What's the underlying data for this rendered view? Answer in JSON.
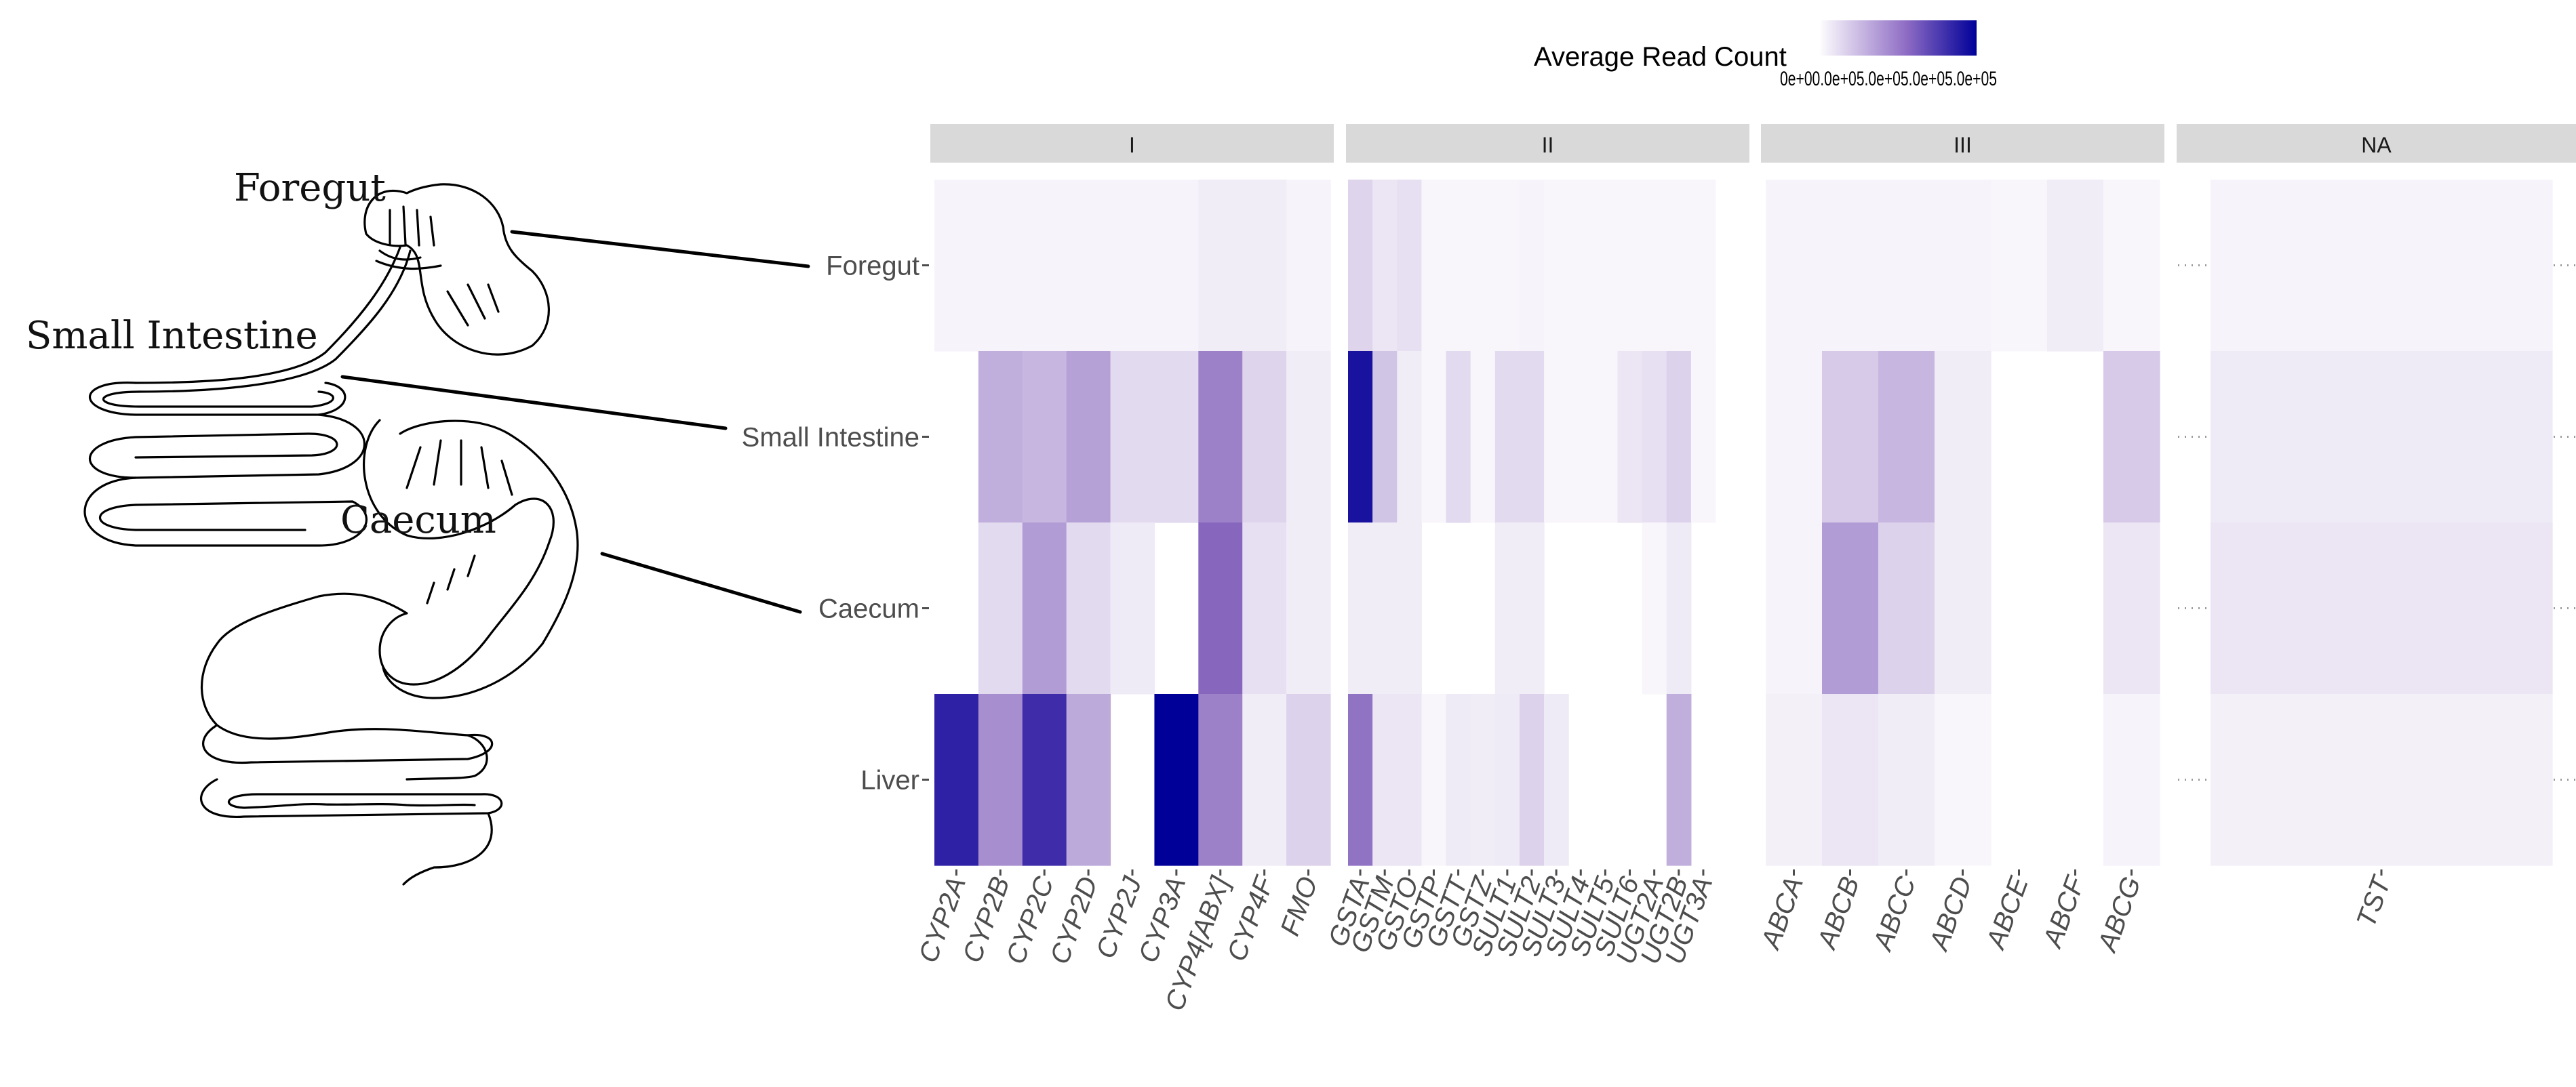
{
  "illustration": {
    "labels": [
      "Foregut",
      "Small Intestine",
      "Caecum"
    ]
  },
  "legend": {
    "title": "Average Read Count",
    "tick_text": "0e+00.0e+05.0e+05.0e+05.0e+05",
    "low_color": "#FCFBFD",
    "high_color": "#000099"
  },
  "chart_data": {
    "type": "heatmap",
    "title": "",
    "xlabel": "",
    "ylabel": "",
    "rows": [
      "Foregut",
      "Small Intestine",
      "Caecum",
      "Liver"
    ],
    "color_scale": {
      "low": "#FCFBFD",
      "mid": "#7C58B8",
      "high": "#000099",
      "value_unit": "fraction of maximum",
      "range": [
        0,
        1
      ]
    },
    "facets": [
      {
        "label": "I",
        "genes": [
          "CYP2A",
          "CYP2B",
          "CYP2C",
          "CYP2D",
          "CYP2J",
          "CYP3A",
          "CYP4[ABX]",
          "CYP4F",
          "FMO"
        ],
        "values": [
          [
            0.03,
            0.03,
            0.03,
            0.03,
            0.03,
            0.03,
            0.05,
            0.05,
            0.03
          ],
          [
            null,
            0.28,
            0.25,
            0.33,
            0.12,
            0.12,
            0.45,
            0.14,
            0.05
          ],
          [
            null,
            0.12,
            0.35,
            0.12,
            0.06,
            null,
            0.55,
            0.1,
            0.05
          ],
          [
            0.85,
            0.4,
            0.8,
            0.3,
            null,
            1.0,
            0.45,
            0.05,
            0.15
          ]
        ]
      },
      {
        "label": "II",
        "genes": [
          "GSTA",
          "GSTM",
          "GSTO",
          "GSTP",
          "GSTT",
          "GSTZ",
          "SULT1",
          "SULT2",
          "SULT3",
          "SULT4",
          "SULT5",
          "SULT6",
          "UGT2A",
          "UGT2B",
          "UGT3A"
        ],
        "values": [
          [
            0.14,
            0.08,
            0.1,
            0.02,
            0.02,
            0.02,
            0.02,
            0.03,
            0.02,
            0.02,
            0.02,
            0.02,
            0.02,
            0.02,
            0.02
          ],
          [
            0.92,
            0.2,
            0.05,
            0.02,
            0.12,
            0.02,
            0.12,
            0.12,
            0.02,
            0.02,
            0.02,
            0.08,
            0.1,
            0.15,
            0.02
          ],
          [
            0.05,
            0.05,
            0.05,
            null,
            null,
            null,
            0.05,
            0.05,
            null,
            null,
            null,
            null,
            0.02,
            0.06,
            null
          ],
          [
            0.5,
            0.08,
            0.08,
            0.02,
            0.06,
            0.05,
            0.06,
            0.15,
            0.06,
            null,
            null,
            null,
            null,
            0.28,
            null
          ]
        ]
      },
      {
        "label": "III",
        "genes": [
          "ABCA",
          "ABCB",
          "ABCC",
          "ABCD",
          "ABCE",
          "ABCF",
          "ABCG"
        ],
        "values": [
          [
            0.03,
            0.03,
            0.03,
            0.03,
            0.02,
            0.05,
            0.02
          ],
          [
            0.03,
            0.18,
            0.25,
            0.05,
            null,
            null,
            0.18
          ],
          [
            0.03,
            0.35,
            0.15,
            0.05,
            null,
            null,
            0.08
          ],
          [
            0.04,
            0.08,
            0.05,
            0.02,
            null,
            null,
            0.03
          ]
        ]
      },
      {
        "label": "NA",
        "genes": [
          "TST"
        ],
        "values": [
          [
            0.03
          ],
          [
            0.06
          ],
          [
            0.08
          ],
          [
            0.04
          ]
        ]
      }
    ]
  }
}
